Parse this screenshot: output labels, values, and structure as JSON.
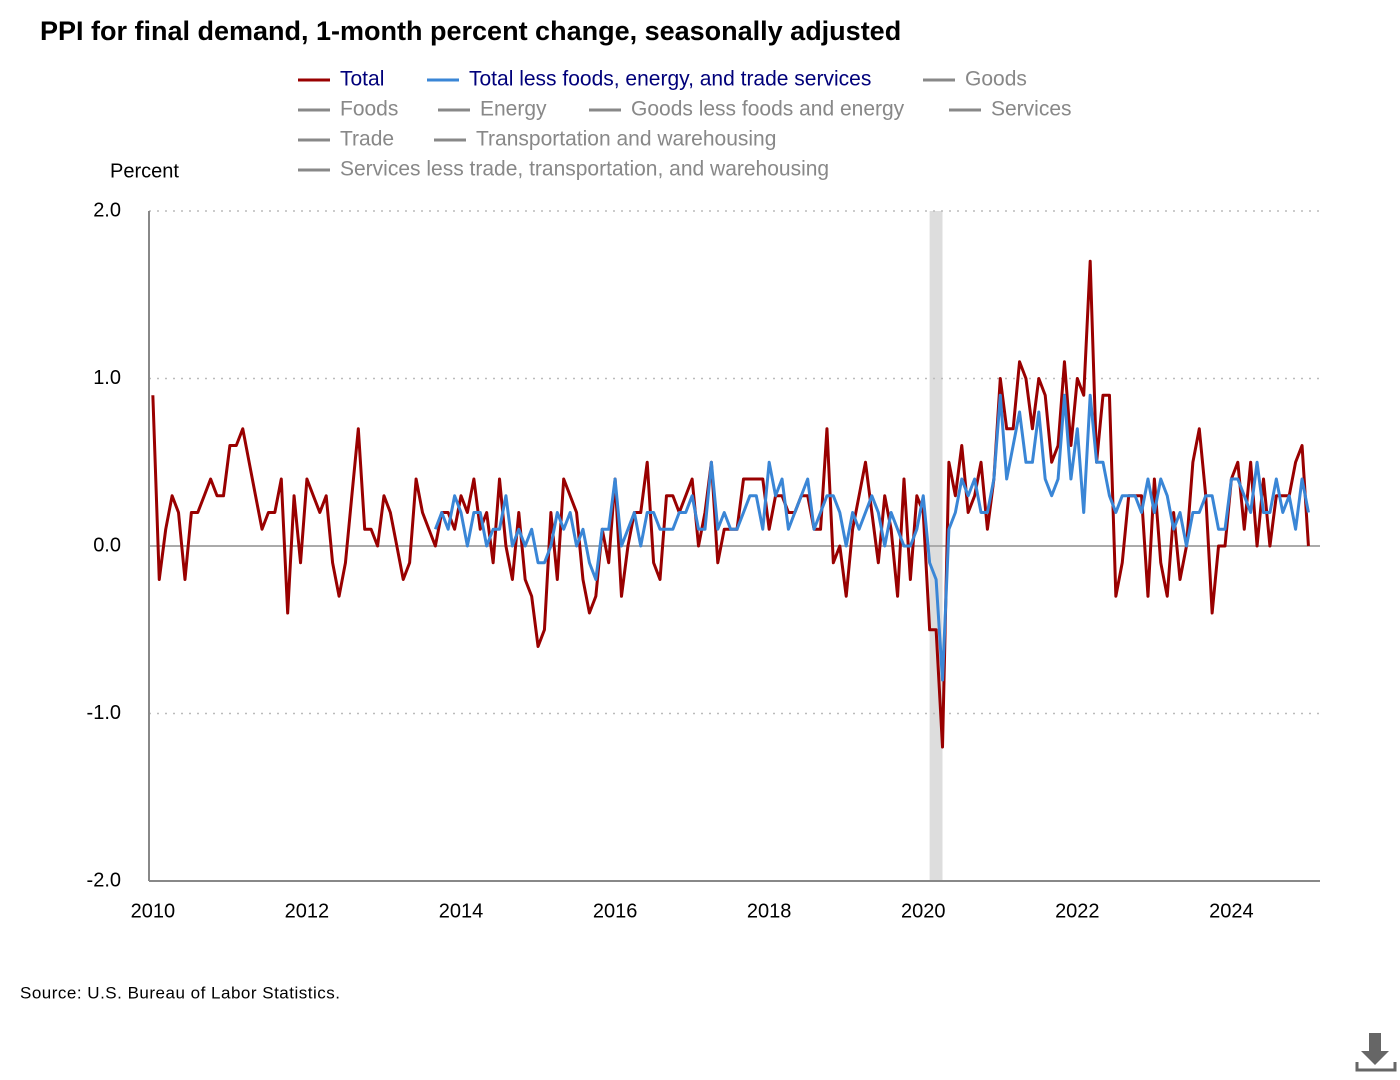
{
  "chart_data": {
    "type": "line",
    "title": "PPI for final demand, 1-month percent change, seasonally adjusted",
    "y_axis_label": "Percent",
    "source": "Source: U.S. Bureau of Labor Statistics.",
    "x": [
      2010,
      2010.083,
      2010.167,
      2010.25,
      2010.333,
      2010.417,
      2010.5,
      2010.583,
      2010.667,
      2010.75,
      2010.833,
      2010.917,
      2011,
      2011.083,
      2011.167,
      2011.25,
      2011.333,
      2011.417,
      2011.5,
      2011.583,
      2011.667,
      2011.75,
      2011.833,
      2011.917,
      2012,
      2012.083,
      2012.167,
      2012.25,
      2012.333,
      2012.417,
      2012.5,
      2012.583,
      2012.667,
      2012.75,
      2012.833,
      2012.917,
      2013,
      2013.083,
      2013.167,
      2013.25,
      2013.333,
      2013.417,
      2013.5,
      2013.583,
      2013.667,
      2013.75,
      2013.833,
      2013.917,
      2014,
      2014.083,
      2014.167,
      2014.25,
      2014.333,
      2014.417,
      2014.5,
      2014.583,
      2014.667,
      2014.75,
      2014.833,
      2014.917,
      2015,
      2015.083,
      2015.167,
      2015.25,
      2015.333,
      2015.417,
      2015.5,
      2015.583,
      2015.667,
      2015.75,
      2015.833,
      2015.917,
      2016,
      2016.083,
      2016.167,
      2016.25,
      2016.333,
      2016.417,
      2016.5,
      2016.583,
      2016.667,
      2016.75,
      2016.833,
      2016.917,
      2017,
      2017.083,
      2017.167,
      2017.25,
      2017.333,
      2017.417,
      2017.5,
      2017.583,
      2017.667,
      2017.75,
      2017.833,
      2017.917,
      2018,
      2018.083,
      2018.167,
      2018.25,
      2018.333,
      2018.417,
      2018.5,
      2018.583,
      2018.667,
      2018.75,
      2018.833,
      2018.917,
      2019,
      2019.083,
      2019.167,
      2019.25,
      2019.333,
      2019.417,
      2019.5,
      2019.583,
      2019.667,
      2019.75,
      2019.833,
      2019.917,
      2020,
      2020.083,
      2020.167,
      2020.25,
      2020.333,
      2020.417,
      2020.5,
      2020.583,
      2020.667,
      2020.75,
      2020.833,
      2020.917,
      2021,
      2021.083,
      2021.167,
      2021.25,
      2021.333,
      2021.417,
      2021.5,
      2021.583,
      2021.667,
      2021.75,
      2021.833,
      2021.917,
      2022,
      2022.083,
      2022.167,
      2022.25,
      2022.333,
      2022.417,
      2022.5,
      2022.583,
      2022.667,
      2022.75,
      2022.833,
      2022.917,
      2023,
      2023.083,
      2023.167,
      2023.25,
      2023.333,
      2023.417,
      2023.5,
      2023.583,
      2023.667,
      2023.75,
      2023.833,
      2023.917,
      2024,
      2024.083,
      2024.167,
      2024.25,
      2024.333,
      2024.417,
      2024.5,
      2024.583,
      2024.667,
      2024.75,
      2024.833,
      2024.917,
      2025
    ],
    "series": [
      {
        "name": "Total",
        "color": "#990000",
        "values": [
          0.9,
          -0.2,
          0.1,
          0.3,
          0.2,
          -0.2,
          0.2,
          0.2,
          0.3,
          0.4,
          0.3,
          0.3,
          0.6,
          0.6,
          0.7,
          0.5,
          0.3,
          0.1,
          0.2,
          0.2,
          0.4,
          -0.4,
          0.3,
          -0.1,
          0.4,
          0.3,
          0.2,
          0.3,
          -0.1,
          -0.3,
          -0.1,
          0.3,
          0.7,
          0.1,
          0.1,
          0.0,
          0.3,
          0.2,
          0.0,
          -0.2,
          -0.1,
          0.4,
          0.2,
          0.1,
          0.0,
          0.2,
          0.2,
          0.1,
          0.3,
          0.2,
          0.4,
          0.1,
          0.2,
          -0.1,
          0.4,
          0.0,
          -0.2,
          0.2,
          -0.2,
          -0.3,
          -0.6,
          -0.5,
          0.2,
          -0.2,
          0.4,
          0.3,
          0.2,
          -0.2,
          -0.4,
          -0.3,
          0.1,
          -0.1,
          0.4,
          -0.3,
          0.0,
          0.2,
          0.2,
          0.5,
          -0.1,
          -0.2,
          0.3,
          0.3,
          0.2,
          0.3,
          0.4,
          0.0,
          0.2,
          0.5,
          -0.1,
          0.1,
          0.1,
          0.1,
          0.4,
          0.4,
          0.4,
          0.4,
          0.1,
          0.3,
          0.3,
          0.2,
          0.2,
          0.3,
          0.3,
          0.1,
          0.1,
          0.7,
          -0.1,
          0.0,
          -0.3,
          0.1,
          0.3,
          0.5,
          0.2,
          -0.1,
          0.3,
          0.1,
          -0.3,
          0.4,
          -0.2,
          0.3,
          0.2,
          -0.5,
          -0.5,
          -1.2,
          0.5,
          0.3,
          0.6,
          0.2,
          0.3,
          0.5,
          0.1,
          0.4,
          1.0,
          0.7,
          0.7,
          1.1,
          1.0,
          0.7,
          1.0,
          0.9,
          0.5,
          0.6,
          1.1,
          0.6,
          1.0,
          0.9,
          1.7,
          0.5,
          0.9,
          0.9,
          -0.3,
          -0.1,
          0.3,
          0.3,
          0.3,
          -0.3,
          0.4,
          -0.1,
          -0.3,
          0.2,
          -0.2,
          0.0,
          0.5,
          0.7,
          0.3,
          -0.4,
          0.0,
          0.0,
          0.4,
          0.5,
          0.1,
          0.5,
          0.0,
          0.4,
          0.0,
          0.3,
          0.3,
          0.3,
          0.5,
          0.6,
          0.0
        ]
      },
      {
        "name": "Total less foods, energy, and trade services",
        "color": "#3a86d6",
        "values": [
          null,
          null,
          null,
          null,
          null,
          null,
          null,
          null,
          null,
          null,
          null,
          null,
          null,
          null,
          null,
          null,
          null,
          null,
          null,
          null,
          null,
          null,
          null,
          null,
          null,
          null,
          null,
          null,
          null,
          null,
          null,
          null,
          null,
          null,
          null,
          null,
          null,
          null,
          null,
          null,
          null,
          null,
          null,
          null,
          0.1,
          0.2,
          0.1,
          0.3,
          0.2,
          0.0,
          0.2,
          0.2,
          0.0,
          0.1,
          0.1,
          0.3,
          0.0,
          0.1,
          0.0,
          0.1,
          -0.1,
          -0.1,
          0.0,
          0.2,
          0.1,
          0.2,
          0.0,
          0.1,
          -0.1,
          -0.2,
          0.1,
          0.1,
          0.4,
          0.0,
          0.1,
          0.2,
          0.0,
          0.2,
          0.2,
          0.1,
          0.1,
          0.1,
          0.2,
          0.2,
          0.3,
          0.1,
          0.1,
          0.5,
          0.1,
          0.2,
          0.1,
          0.1,
          0.2,
          0.3,
          0.3,
          0.1,
          0.5,
          0.3,
          0.4,
          0.1,
          0.2,
          0.3,
          0.4,
          0.1,
          0.2,
          0.3,
          0.3,
          0.2,
          0.0,
          0.2,
          0.1,
          0.2,
          0.3,
          0.2,
          0.0,
          0.2,
          0.1,
          0.0,
          0.0,
          0.1,
          0.3,
          -0.1,
          -0.2,
          -0.8,
          0.1,
          0.2,
          0.4,
          0.3,
          0.4,
          0.2,
          0.2,
          0.4,
          0.9,
          0.4,
          0.6,
          0.8,
          0.5,
          0.5,
          0.8,
          0.4,
          0.3,
          0.4,
          0.9,
          0.4,
          0.7,
          0.2,
          0.9,
          0.5,
          0.5,
          0.3,
          0.2,
          0.3,
          0.3,
          0.3,
          0.2,
          0.4,
          0.2,
          0.4,
          0.3,
          0.1,
          0.2,
          0.0,
          0.2,
          0.2,
          0.3,
          0.3,
          0.1,
          0.1,
          0.4,
          0.4,
          0.3,
          0.2,
          0.5,
          0.2,
          0.2,
          0.4,
          0.2,
          0.3,
          0.1,
          0.4,
          0.2
        ]
      }
    ],
    "inactive_series": [
      {
        "name": "Goods",
        "color": "#888888"
      },
      {
        "name": "Foods",
        "color": "#888888"
      },
      {
        "name": "Energy",
        "color": "#888888"
      },
      {
        "name": "Goods less foods and energy",
        "color": "#888888"
      },
      {
        "name": "Services",
        "color": "#888888"
      },
      {
        "name": "Trade",
        "color": "#888888"
      },
      {
        "name": "Transportation and warehousing",
        "color": "#888888"
      },
      {
        "name": "Services less trade, transportation, and warehousing",
        "color": "#888888"
      }
    ],
    "shade": {
      "from": 2020.083,
      "to": 2020.25,
      "color": "#dddddd"
    },
    "xlim": [
      2009.95,
      2025.15
    ],
    "xticks": [
      2010,
      2012,
      2014,
      2016,
      2018,
      2020,
      2022,
      2024
    ],
    "ylim": [
      -2,
      2
    ],
    "yticks": [
      {
        "value": -2,
        "label": "-2.0"
      },
      {
        "value": -1,
        "label": "-1.0"
      },
      {
        "value": 0,
        "label": "0.0"
      },
      {
        "value": 1,
        "label": "1.0"
      },
      {
        "value": 2,
        "label": "2.0"
      }
    ],
    "grid": true
  }
}
